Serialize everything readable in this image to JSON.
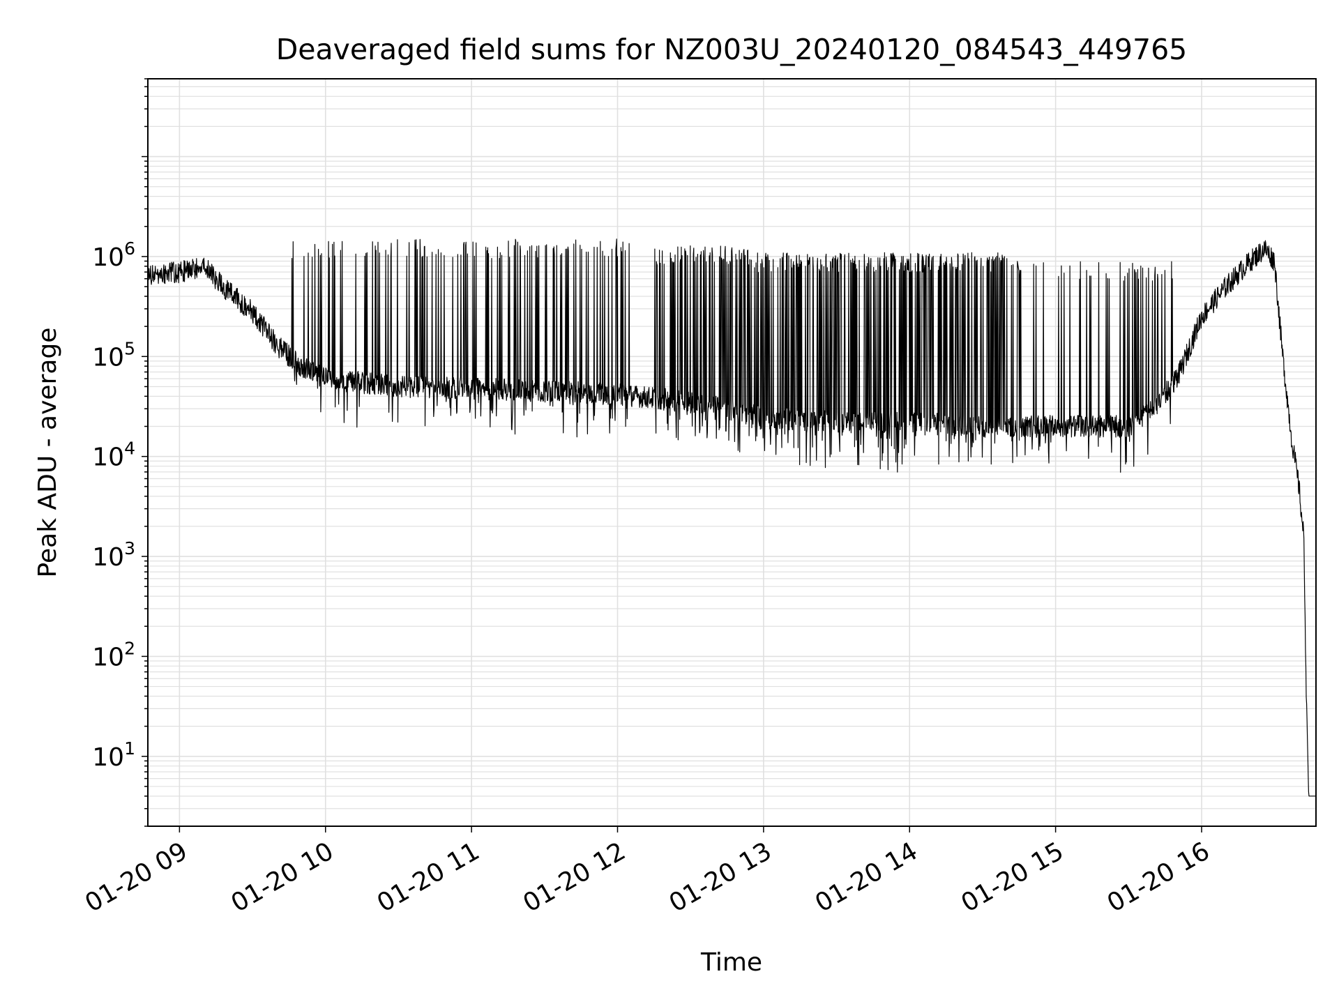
{
  "chart_data": {
    "type": "line",
    "title": "Deaveraged field sums for NZ003U_20240120_084543_449765",
    "xlabel": "Time",
    "ylabel": "Peak ADU - average",
    "yscale": "log",
    "ylim": [
      2,
      60000000
    ],
    "xlim": [
      "2024-01-20 08:47",
      "2024-01-20 16:47"
    ],
    "grid": true,
    "x_ticks": [
      {
        "t": "2024-01-20 09:00",
        "label": "01-20 09"
      },
      {
        "t": "2024-01-20 10:00",
        "label": "01-20 10"
      },
      {
        "t": "2024-01-20 11:00",
        "label": "01-20 11"
      },
      {
        "t": "2024-01-20 12:00",
        "label": "01-20 12"
      },
      {
        "t": "2024-01-20 13:00",
        "label": "01-20 13"
      },
      {
        "t": "2024-01-20 14:00",
        "label": "01-20 14"
      },
      {
        "t": "2024-01-20 15:00",
        "label": "01-20 15"
      },
      {
        "t": "2024-01-20 16:00",
        "label": "01-20 16"
      }
    ],
    "y_ticks": [
      {
        "value": 10,
        "base": "10",
        "exp": "1"
      },
      {
        "value": 100,
        "base": "10",
        "exp": "2"
      },
      {
        "value": 1000,
        "base": "10",
        "exp": "3"
      },
      {
        "value": 10000,
        "base": "10",
        "exp": "4"
      },
      {
        "value": 100000,
        "base": "10",
        "exp": "5"
      },
      {
        "value": 1000000,
        "base": "10",
        "exp": "6"
      }
    ],
    "line_color": "#000000",
    "grid_color": "#e0e0e0",
    "series_baseline": {
      "x": [
        "2024-01-20 08:47",
        "2024-01-20 09:00",
        "2024-01-20 09:10",
        "2024-01-20 09:20",
        "2024-01-20 09:30",
        "2024-01-20 09:40",
        "2024-01-20 09:50",
        "2024-01-20 10:00",
        "2024-01-20 10:30",
        "2024-01-20 11:00",
        "2024-01-20 11:30",
        "2024-01-20 12:00",
        "2024-01-20 12:30",
        "2024-01-20 13:00",
        "2024-01-20 13:30",
        "2024-01-20 14:00",
        "2024-01-20 14:30",
        "2024-01-20 15:00",
        "2024-01-20 15:30",
        "2024-01-20 15:40",
        "2024-01-20 15:50",
        "2024-01-20 16:00",
        "2024-01-20 16:10",
        "2024-01-20 16:20",
        "2024-01-20 16:26",
        "2024-01-20 16:30",
        "2024-01-20 16:33",
        "2024-01-20 16:37",
        "2024-01-20 16:40",
        "2024-01-20 16:42",
        "2024-01-20 16:43",
        "2024-01-20 16:44",
        "2024-01-20 16:47"
      ],
      "y": [
        650000,
        700000,
        800000,
        450000,
        280000,
        130000,
        80000,
        60000,
        50000,
        48000,
        45000,
        42000,
        35000,
        25000,
        22000,
        22000,
        20000,
        20000,
        20000,
        30000,
        60000,
        250000,
        500000,
        900000,
        1200000,
        900000,
        120000,
        15000,
        5000,
        1500,
        50,
        4,
        4
      ]
    },
    "spike_bands": [
      {
        "from": "2024-01-20 09:45",
        "to": "2024-01-20 10:55",
        "density": 0.35,
        "peak": 1500000
      },
      {
        "from": "2024-01-20 10:55",
        "to": "2024-01-20 12:05",
        "density": 0.55,
        "peak": 1500000
      },
      {
        "from": "2024-01-20 12:15",
        "to": "2024-01-20 12:55",
        "density": 0.7,
        "peak": 1300000
      },
      {
        "from": "2024-01-20 12:55",
        "to": "2024-01-20 14:45",
        "density": 0.9,
        "peak": 1100000
      },
      {
        "from": "2024-01-20 14:45",
        "to": "2024-01-20 15:50",
        "density": 0.4,
        "peak": 900000
      }
    ]
  }
}
